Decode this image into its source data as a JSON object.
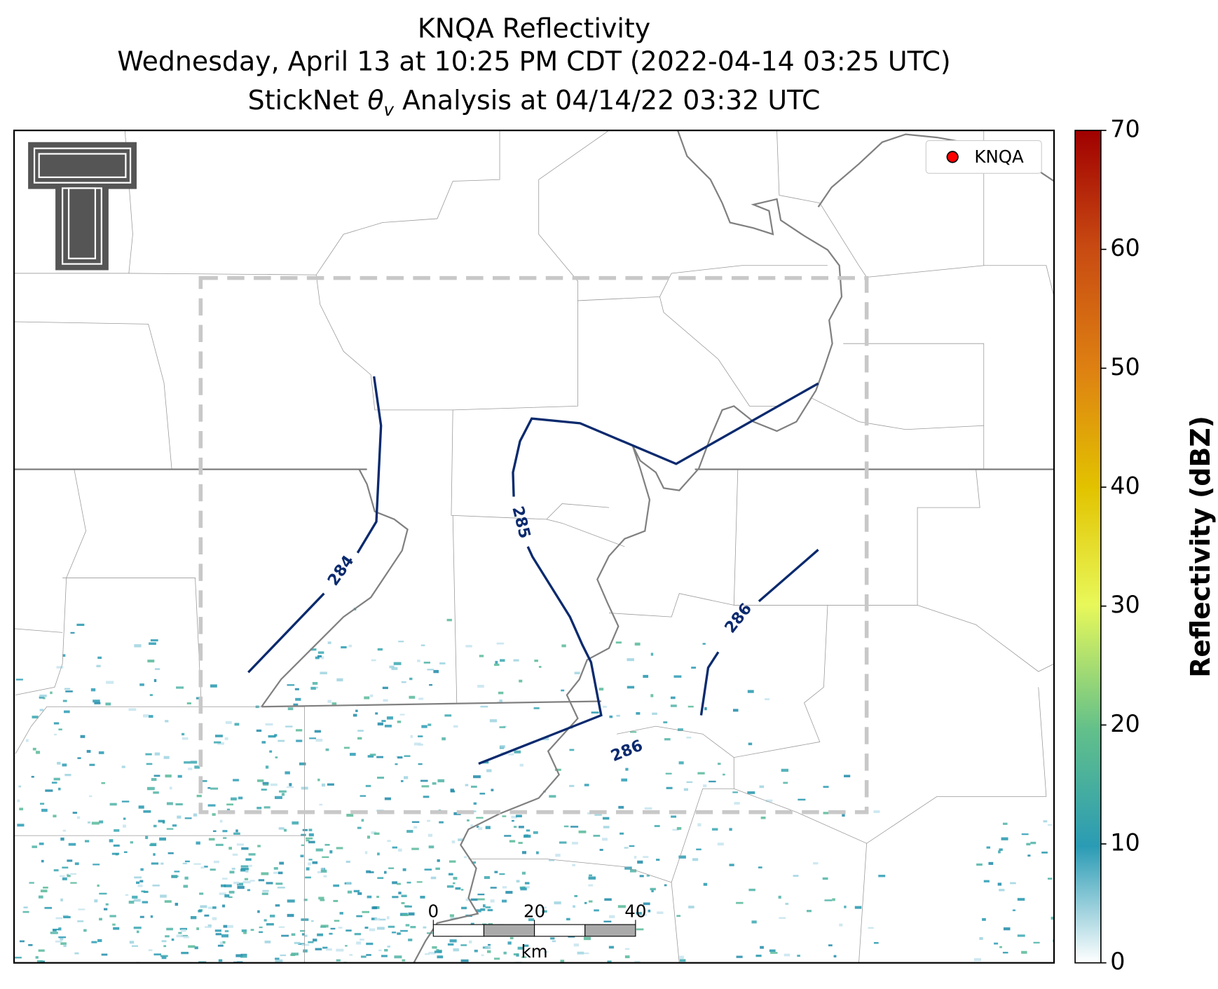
{
  "title": [
    "KNQA Reflectivity",
    "Wednesday, April 13 at 10:25 PM CDT (2022-04-14 03:25 UTC)"
  ],
  "subtitle": {
    "before": "StickNet ",
    "symbol": "θ",
    "subscript": "v",
    "after": " Analysis at 04/14/22 03:32 UTC"
  },
  "legend": {
    "label": "KNQA",
    "color": "#ff0000"
  },
  "colorbar": {
    "label": "Reflectivity (dBZ)",
    "lim": [
      0,
      70
    ],
    "ticks": [
      0,
      10,
      20,
      30,
      40,
      50,
      60,
      70
    ]
  },
  "contours": [
    284,
    285,
    286,
    286
  ],
  "scalebar": {
    "lim": [
      0,
      40
    ],
    "ticks": [
      0,
      20,
      40
    ],
    "unit": "km"
  }
}
